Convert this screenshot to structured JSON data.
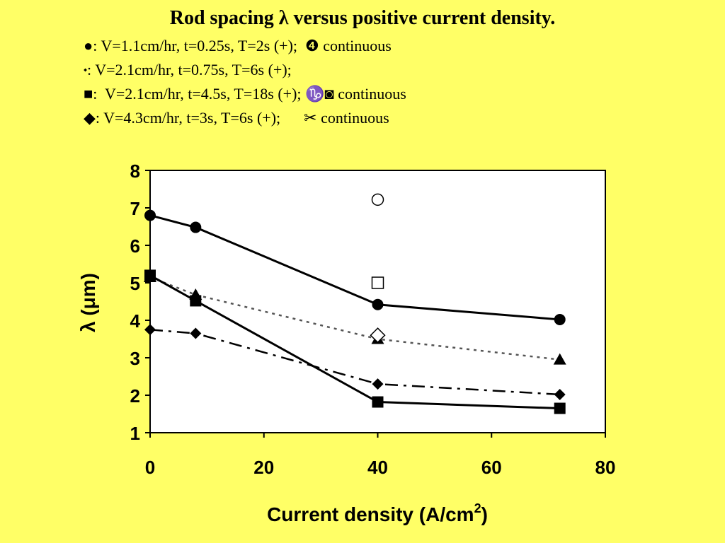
{
  "slide": {
    "title": "Rod spacing λ versus positive current density.",
    "legend_lines": [
      {
        "symbol": "●",
        "text": ": V=1.1cm/hr, t=0.25s, T=2s (+);",
        "cont_symbol": "❹",
        "cont_text": "continuous"
      },
      {
        "symbol": "⬩",
        "text": ": V=2.1cm/hr, t=0.75s, T=6s (+);",
        "cont_symbol": "",
        "cont_text": ""
      },
      {
        "symbol": "■",
        "text": ":  V=2.1cm/hr, t=4.5s, T=18s (+);",
        "cont_symbol": "♑◙",
        "cont_text": "continuous"
      },
      {
        "symbol": "◆",
        "text": ": V=4.3cm/hr, t=3s, T=6s (+);",
        "cont_symbol": "✂",
        "cont_text": "continuous"
      }
    ]
  },
  "colors": {
    "background": "#FFFF66",
    "plot_area": "#FFFFFF",
    "ink": "#000000",
    "dotted_series": "#555555"
  },
  "chart_data": {
    "type": "line",
    "xlabel": "Current density (A/cm",
    "xlabel_sup": "2",
    "xlabel_tail": ")",
    "ylabel": "λ (μm)",
    "xlim": [
      0,
      80
    ],
    "ylim": [
      1,
      8
    ],
    "xticks": [
      0,
      20,
      40,
      60,
      80
    ],
    "yticks": [
      1,
      2,
      3,
      4,
      5,
      6,
      7,
      8
    ],
    "grid": false,
    "series": [
      {
        "marker": "circle",
        "line": "solid",
        "x": [
          0,
          8,
          40,
          72
        ],
        "y": [
          6.8,
          6.48,
          4.42,
          4.02
        ]
      },
      {
        "marker": "triangle",
        "line": "dotted",
        "x": [
          0,
          8,
          40,
          72
        ],
        "y": [
          5.15,
          4.68,
          3.5,
          2.95
        ]
      },
      {
        "marker": "square",
        "line": "solid",
        "x": [
          0,
          8,
          40,
          72
        ],
        "y": [
          5.2,
          4.52,
          1.82,
          1.65
        ]
      },
      {
        "marker": "diamond",
        "line": "dashdot",
        "x": [
          0,
          8,
          40,
          72
        ],
        "y": [
          3.75,
          3.65,
          2.3,
          2.02
        ]
      },
      {
        "marker": "open-circle",
        "line": "none",
        "x": [
          40
        ],
        "y": [
          7.22
        ]
      },
      {
        "marker": "open-square",
        "line": "none",
        "x": [
          40
        ],
        "y": [
          5.0
        ]
      },
      {
        "marker": "open-diamond",
        "line": "none",
        "x": [
          40
        ],
        "y": [
          3.6
        ]
      }
    ]
  }
}
